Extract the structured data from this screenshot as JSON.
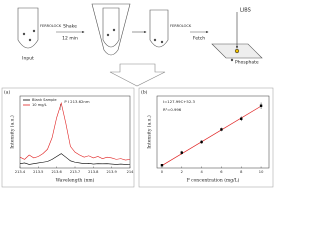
{
  "diagram": {
    "tube_label_1": "FERROLOCK",
    "step_1": "Input",
    "step_2": "Shake",
    "step_2_time": "12 min",
    "tube_label_2": "FERROLOCK",
    "step_3": "Fetch",
    "instrument": "LIBS",
    "target": "Phosphate"
  },
  "chart_data": [
    {
      "type": "line",
      "panel_label": "(a)",
      "x_label": "Wavelength (nm)",
      "y_label": "Intensity (a.u.)",
      "annotation": "P I 213.62nm",
      "annotation_x": 213.62,
      "x": [
        213.4,
        213.425,
        213.45,
        213.475,
        213.5,
        213.525,
        213.55,
        213.575,
        213.6,
        213.625,
        213.65,
        213.675,
        213.7,
        213.725,
        213.75,
        213.775,
        213.8,
        213.825,
        213.85,
        213.875,
        213.9,
        213.925,
        213.95,
        213.975,
        214.0
      ],
      "series": [
        {
          "name": "Blank Sample",
          "color": "#000000",
          "values": [
            60,
            70,
            50,
            60,
            70,
            80,
            90,
            120,
            160,
            200,
            150,
            100,
            80,
            70,
            60,
            65,
            55,
            60,
            58,
            60,
            55,
            50,
            55,
            50,
            52
          ]
        },
        {
          "name": "10 mg/L",
          "color": "#e02020",
          "values": [
            150,
            120,
            180,
            140,
            160,
            200,
            260,
            420,
            700,
            900,
            620,
            300,
            220,
            180,
            150,
            170,
            140,
            160,
            130,
            150,
            140,
            120,
            130,
            110,
            120
          ]
        }
      ],
      "xlim": [
        213.4,
        214.0
      ],
      "xticks": [
        213.4,
        213.5,
        213.6,
        213.7,
        213.8,
        213.9,
        214.0
      ],
      "ylim": [
        0,
        1000
      ]
    },
    {
      "type": "scatter",
      "panel_label": "(b)",
      "x_label": "P concentration (mg/L)",
      "y_label": "Intensity (a.u.)",
      "annotation": "I=127.99C+52.3",
      "annotation_2": "R²=0.996",
      "fit": {
        "slope": 127.99,
        "intercept": 52.3,
        "color": "#e02020"
      },
      "x": [
        0,
        2,
        4,
        6,
        8,
        10
      ],
      "values": [
        60,
        330,
        560,
        830,
        1060,
        1340
      ],
      "errors": [
        20,
        40,
        40,
        40,
        50,
        70
      ],
      "color": "#000000",
      "xlim": [
        -0.5,
        10.8
      ],
      "xticks": [
        0,
        2,
        4,
        6,
        8,
        10
      ],
      "ylim": [
        0,
        1550
      ]
    }
  ]
}
